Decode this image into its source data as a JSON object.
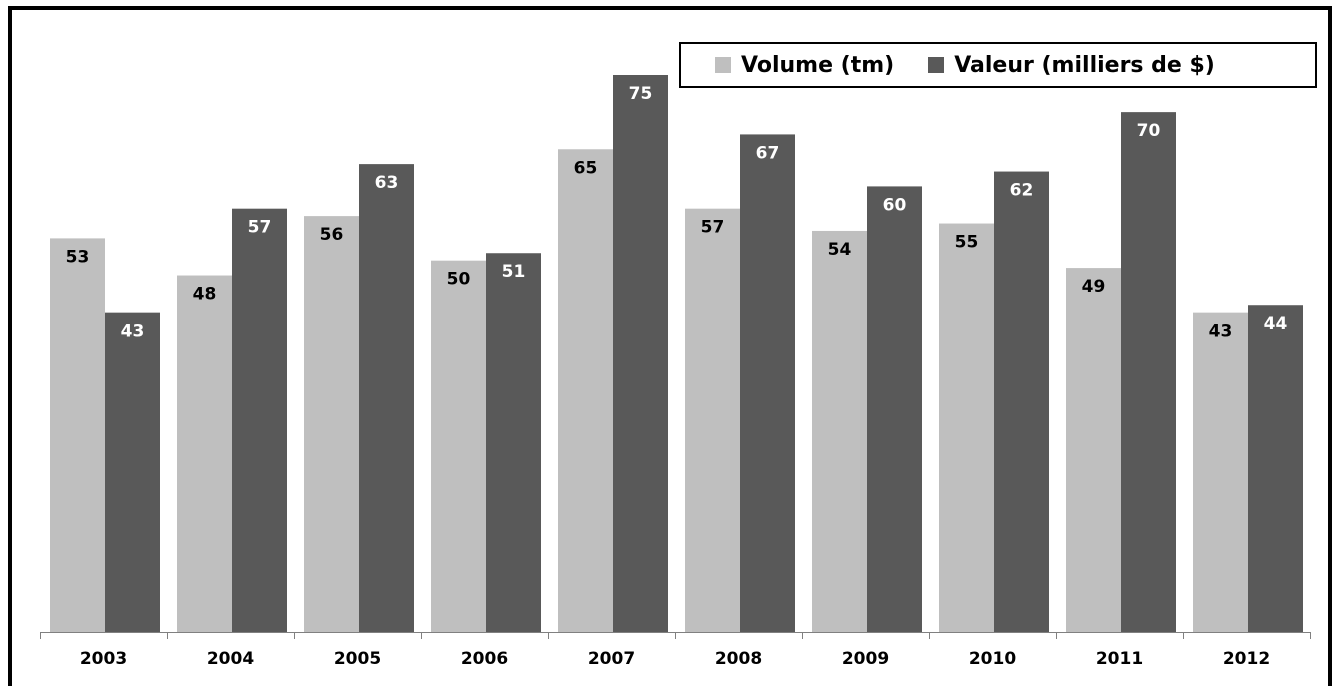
{
  "chart_data": {
    "type": "bar",
    "categories": [
      "2003",
      "2004",
      "2005",
      "2006",
      "2007",
      "2008",
      "2009",
      "2010",
      "2011",
      "2012"
    ],
    "series": [
      {
        "name": "Volume (tm)",
        "color": "#bfbfbf",
        "values": [
          53,
          48,
          56,
          50,
          65,
          57,
          54,
          55,
          49,
          43
        ]
      },
      {
        "name": "Valeur (milliers de $)",
        "color": "#595959",
        "values": [
          43,
          57,
          63,
          51,
          75,
          67,
          60,
          62,
          70,
          44
        ]
      }
    ],
    "ylim": [
      0,
      75
    ],
    "legend_position": "top-right",
    "grid": false
  }
}
